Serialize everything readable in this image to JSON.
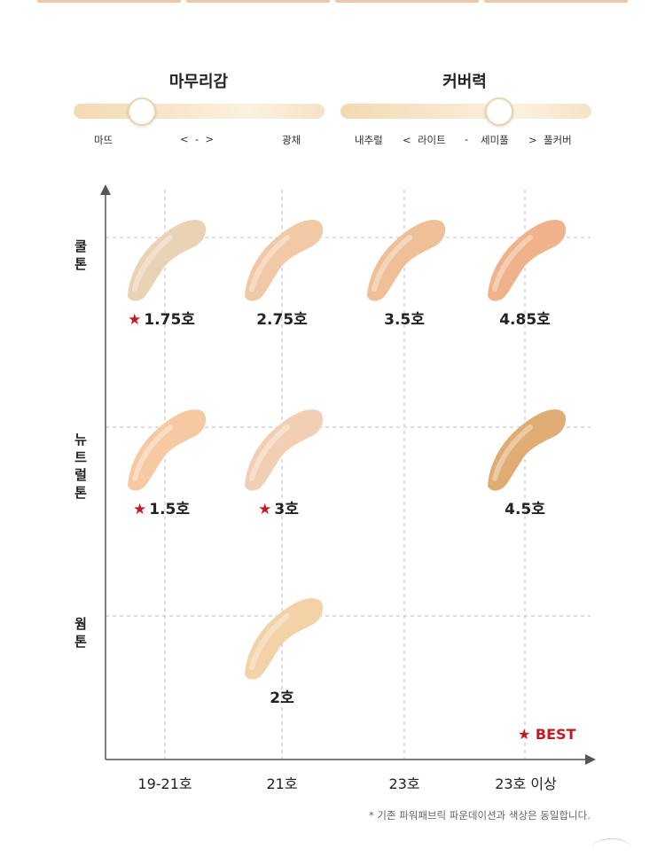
{
  "sliders": [
    {
      "title": "마무리감",
      "labels": [
        "마뜨",
        "<  -  >",
        "광채"
      ],
      "level": 0.27
    },
    {
      "title": "커버력",
      "labels": [
        "내추럴",
        "<  라이트",
        "-",
        "세미풀",
        ">  풀커버"
      ],
      "level": 0.63
    }
  ],
  "chart_data": {
    "type": "table",
    "x_categories": [
      "19-21호",
      "21호",
      "23호",
      "23호 이상"
    ],
    "y_categories": [
      "쿨톤",
      "뉴트럴톤",
      "웜톤"
    ],
    "y_labels_display": [
      "쿨\n톤",
      "뉴\n트\n럴\n톤",
      "웜\n톤"
    ],
    "grid": true,
    "shades": [
      {
        "name": "1.75호",
        "x": "19-21호",
        "y": "쿨톤",
        "best": true,
        "color": "#ead2b4"
      },
      {
        "name": "2.75호",
        "x": "21호",
        "y": "쿨톤",
        "best": false,
        "color": "#f1c9a6"
      },
      {
        "name": "3.5호",
        "x": "23호",
        "y": "쿨톤",
        "best": false,
        "color": "#efc098"
      },
      {
        "name": "4.85호",
        "x": "23호 이상",
        "y": "쿨톤",
        "best": false,
        "color": "#efb28a"
      },
      {
        "name": "1.5호",
        "x": "19-21호",
        "y": "뉴트럴톤",
        "best": true,
        "color": "#f6c9a3"
      },
      {
        "name": "3호",
        "x": "21호",
        "y": "뉴트럴톤",
        "best": true,
        "color": "#f2cfb4"
      },
      {
        "name": "4.5호",
        "x": "23호 이상",
        "y": "뉴트럴톤",
        "best": false,
        "color": "#dfac73"
      },
      {
        "name": "2호",
        "x": "21호",
        "y": "웜톤",
        "best": false,
        "color": "#f3d2a8"
      }
    ],
    "legend": {
      "symbol": "★",
      "label": "BEST",
      "color": "#c21b21"
    }
  },
  "footnote": "* 기존 파워패브릭 파운데이션과 색상은 동일합니다.",
  "colors": {
    "accent": "#c21b21",
    "grid": "#bdbdbd",
    "axis": "#555555"
  }
}
